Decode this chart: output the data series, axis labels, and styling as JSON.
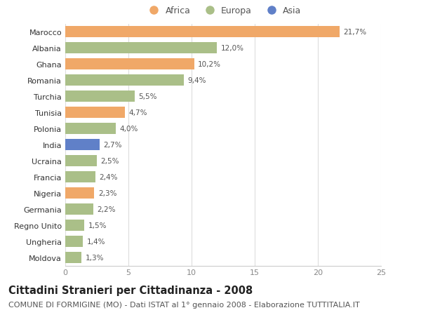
{
  "countries": [
    "Marocco",
    "Albania",
    "Ghana",
    "Romania",
    "Turchia",
    "Tunisia",
    "Polonia",
    "India",
    "Ucraina",
    "Francia",
    "Nigeria",
    "Germania",
    "Regno Unito",
    "Ungheria",
    "Moldova"
  ],
  "values": [
    21.7,
    12.0,
    10.2,
    9.4,
    5.5,
    4.7,
    4.0,
    2.7,
    2.5,
    2.4,
    2.3,
    2.2,
    1.5,
    1.4,
    1.3
  ],
  "labels": [
    "21,7%",
    "12,0%",
    "10,2%",
    "9,4%",
    "5,5%",
    "4,7%",
    "4,0%",
    "2,7%",
    "2,5%",
    "2,4%",
    "2,3%",
    "2,2%",
    "1,5%",
    "1,4%",
    "1,3%"
  ],
  "continents": [
    "Africa",
    "Europa",
    "Africa",
    "Europa",
    "Europa",
    "Africa",
    "Europa",
    "Asia",
    "Europa",
    "Europa",
    "Africa",
    "Europa",
    "Europa",
    "Europa",
    "Europa"
  ],
  "colors": {
    "Africa": "#F0A868",
    "Europa": "#AABF88",
    "Asia": "#6080C8"
  },
  "legend_labels": [
    "Africa",
    "Europa",
    "Asia"
  ],
  "legend_colors": [
    "#F0A868",
    "#AABF88",
    "#6080C8"
  ],
  "xlim": [
    0,
    25
  ],
  "xticks": [
    0,
    5,
    10,
    15,
    20,
    25
  ],
  "title": "Cittadini Stranieri per Cittadinanza - 2008",
  "subtitle": "COMUNE DI FORMIGINE (MO) - Dati ISTAT al 1° gennaio 2008 - Elaborazione TUTTITALIA.IT",
  "bg_color": "#ffffff",
  "grid_color": "#dddddd",
  "bar_height": 0.7,
  "title_fontsize": 10.5,
  "subtitle_fontsize": 8,
  "label_fontsize": 7.5,
  "tick_fontsize": 8,
  "legend_fontsize": 9
}
